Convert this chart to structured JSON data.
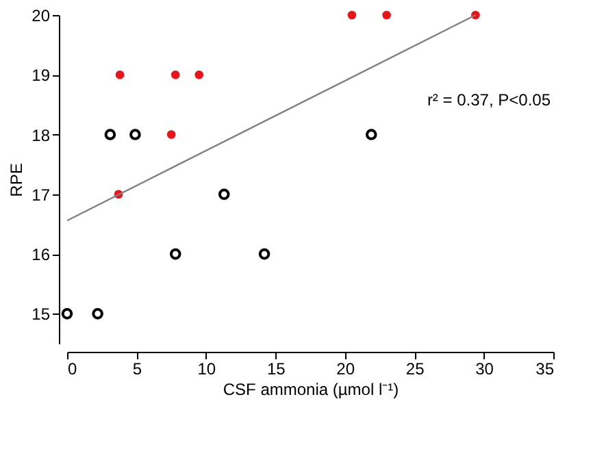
{
  "chart_data": {
    "type": "scatter",
    "xlabel": "CSF ammonia (µmol l⁻¹)",
    "ylabel": "RPE",
    "xlim": [
      0,
      35
    ],
    "xticks": [
      0,
      5,
      10,
      15,
      20,
      25,
      30,
      35
    ],
    "ylim": [
      14.5,
      20
    ],
    "yticks": [
      15,
      16,
      17,
      18,
      19,
      20
    ],
    "grid": false,
    "series": [
      {
        "color": "#000000",
        "marker": "circle",
        "x": [
          0,
          2.2,
          3.1,
          4.9,
          7.8,
          11.3,
          14.2,
          21.9
        ],
        "values": [
          15,
          15,
          18,
          18,
          16,
          17,
          16,
          18
        ]
      },
      {
        "color": "#e8161b",
        "marker": "circle",
        "x": [
          3.8,
          7.8,
          9.5,
          7.5,
          3.7,
          20.5,
          23,
          29.4
        ],
        "values": [
          19,
          19,
          19,
          18,
          17,
          20,
          20,
          20
        ]
      },
      {
        "type": "line",
        "marker": "none",
        "line_style": "solid",
        "color": "#808080",
        "x": [
          0,
          29.4
        ],
        "values": [
          16.56,
          20
        ]
      }
    ],
    "annotations": [
      "r² = 0.37, P<0.05"
    ]
  }
}
